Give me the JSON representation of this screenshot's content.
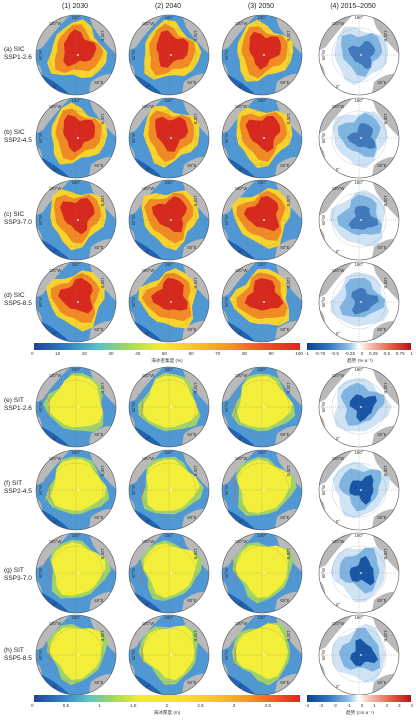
{
  "columns": [
    "(1) 2030",
    "(2) 2040",
    "(3) 2050",
    "(4) 2015–2050"
  ],
  "rows": [
    {
      "line1": "(a) SIC",
      "line2": "SSP1-2.6"
    },
    {
      "line1": "(b) SIC",
      "line2": "SSP2-4.5"
    },
    {
      "line1": "(c) SIC",
      "line2": "SSP3-7.0"
    },
    {
      "line1": "(d) SIC",
      "line2": "SSP5-8.5"
    },
    {
      "line1": "(e) SIT",
      "line2": "SSP1-2.6"
    },
    {
      "line1": "(f) SIT",
      "line2": "SSP2-4.5"
    },
    {
      "line1": "(g) SIT",
      "line2": "SSP3-7.0"
    },
    {
      "line1": "(h) SIT",
      "line2": "SSP5-8.5"
    }
  ],
  "lon_labels": {
    "top": "180°",
    "tl": "120°W",
    "tr": "120°E",
    "left": "60°W",
    "bl": "0°",
    "br": "60°E"
  },
  "colorbars": {
    "sic": {
      "ticks": [
        "0",
        "10",
        "20",
        "30",
        "40",
        "50",
        "60",
        "70",
        "80",
        "90",
        "100"
      ],
      "title": "海冰密集度 (%)"
    },
    "sic_trend": {
      "ticks": [
        "-1",
        "-0.75",
        "-0.5",
        "-0.25",
        "0",
        "0.25",
        "0.5",
        "0.75",
        "1"
      ],
      "title": "趋势 (%·a⁻¹)"
    },
    "sit": {
      "ticks": [
        "0",
        "0.5",
        "1",
        "1.5",
        "2",
        "2.5",
        "3",
        "3.5"
      ],
      "title": "海冰厚度 (m)"
    },
    "sit_trend": {
      "ticks": [
        "-4",
        "-3",
        "-2",
        "-1",
        "0",
        "1",
        "2",
        "3",
        "4"
      ],
      "title": "趋势 (cm·a⁻¹)"
    }
  },
  "colors": {
    "land": "#b9b9b9",
    "ocean_deep": "#1f63b5",
    "ocean_mid": "#4f98d4",
    "sic_core": "#d8291f",
    "sic_mid": "#f08a24",
    "sic_edge": "#f6d42c",
    "sit_main": "#f3ee3a",
    "sit_edge": "#9fd36a",
    "trend_strong": "#0d4a9e",
    "trend_weak": "#cfe3f5",
    "trend_white": "#ffffff"
  }
}
